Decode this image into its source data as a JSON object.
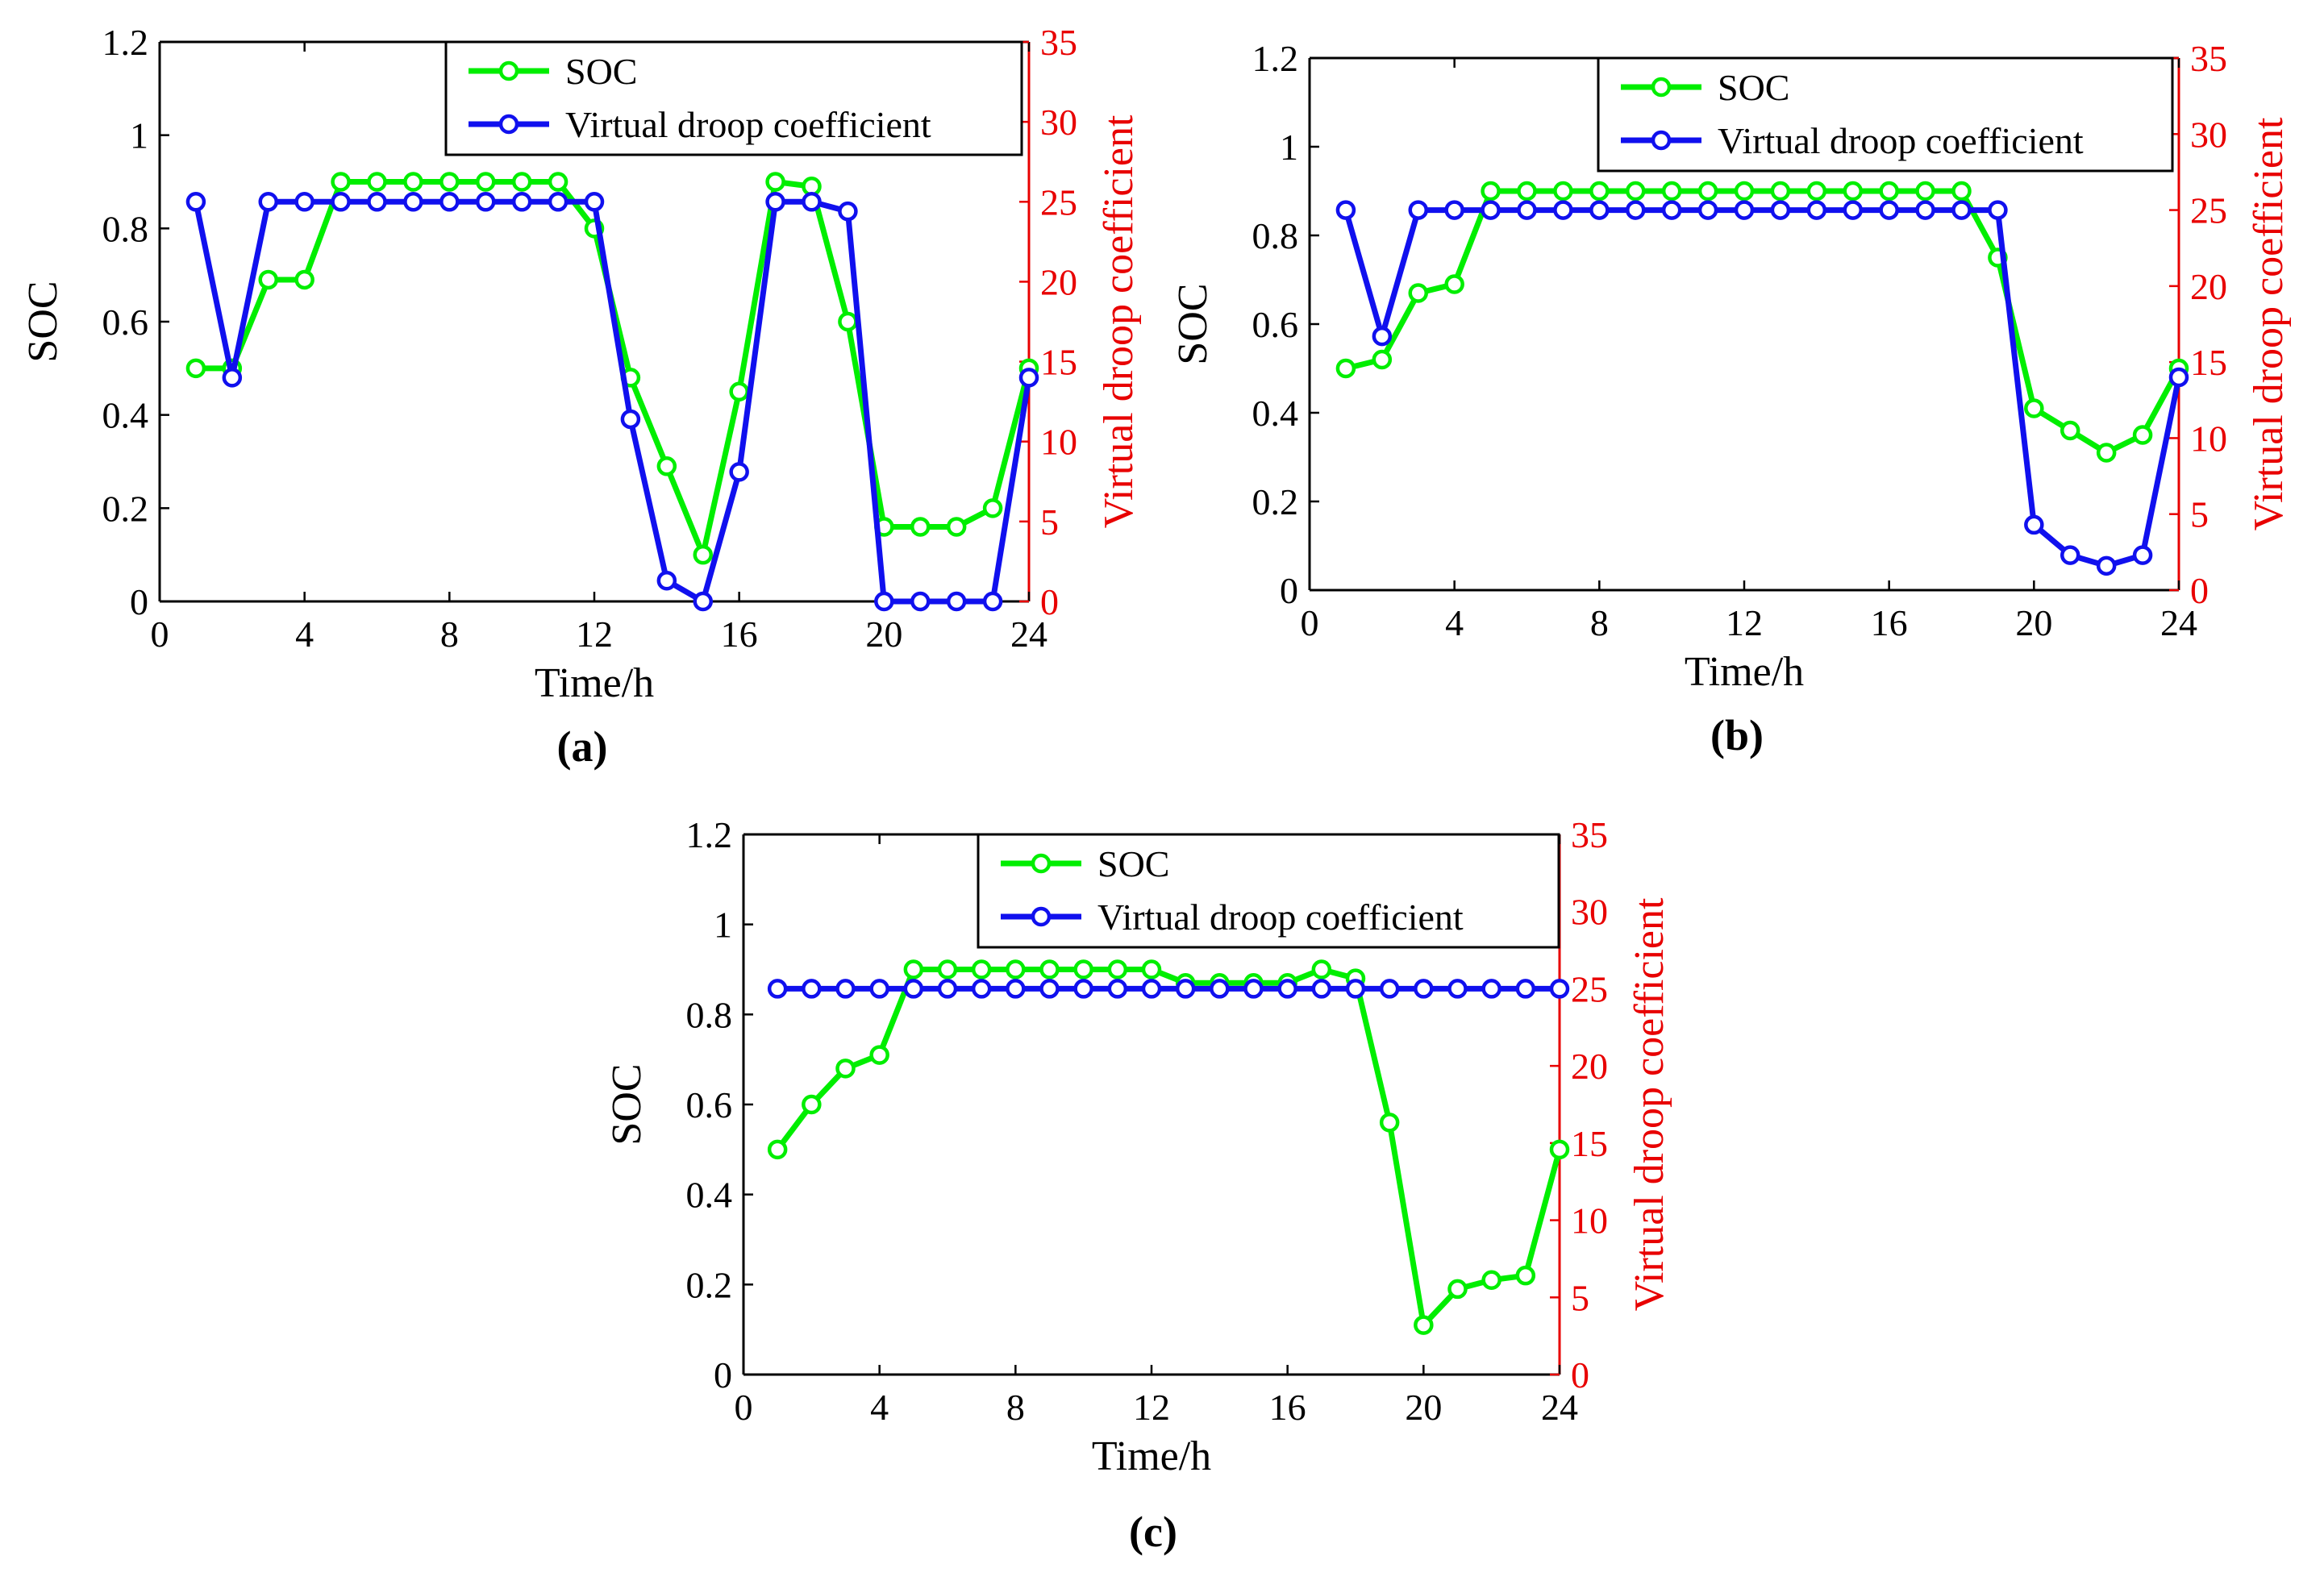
{
  "figure": {
    "description_free": true
  },
  "colors": {
    "soc": "#00ee00",
    "droop": "#1010ee",
    "right_axis": "#e80000",
    "axis": "#000000"
  },
  "chart_data": [
    {
      "type": "line",
      "panel_label": "(a)",
      "xlabel": "Time/h",
      "ylabel_left": "SOC",
      "ylabel_right": "Virtual droop coefficient",
      "xlim": [
        0,
        24
      ],
      "ylim_left": [
        0,
        1.2
      ],
      "ylim_right": [
        0,
        35
      ],
      "xticks": [
        "0",
        "4",
        "8",
        "12",
        "16",
        "20",
        "24"
      ],
      "yticks_left": [
        "0",
        "0.2",
        "0.4",
        "0.6",
        "0.8",
        "1",
        "1.2"
      ],
      "yticks_right": [
        "0",
        "5",
        "10",
        "15",
        "20",
        "25",
        "30",
        "35"
      ],
      "legend": [
        "SOC",
        "Virtual droop coefficient"
      ],
      "x": [
        1,
        2,
        3,
        4,
        5,
        6,
        7,
        8,
        9,
        10,
        11,
        12,
        13,
        14,
        15,
        16,
        17,
        18,
        19,
        20,
        21,
        22,
        23,
        24
      ],
      "series": [
        {
          "name": "SOC",
          "axis": "left",
          "values": [
            0.5,
            0.5,
            0.69,
            0.69,
            0.9,
            0.9,
            0.9,
            0.9,
            0.9,
            0.9,
            0.9,
            0.8,
            0.48,
            0.29,
            0.1,
            0.45,
            0.9,
            0.89,
            0.6,
            0.16,
            0.16,
            0.16,
            0.2,
            0.5
          ]
        },
        {
          "name": "Virtual droop coefficient",
          "axis": "right",
          "values": [
            25,
            14,
            25,
            25,
            25,
            25,
            25,
            25,
            25,
            25,
            25,
            25,
            11.4,
            1.3,
            0,
            8.1,
            25,
            25,
            24.4,
            0,
            0,
            0,
            0,
            14
          ]
        }
      ]
    },
    {
      "type": "line",
      "panel_label": "(b)",
      "xlabel": "Time/h",
      "ylabel_left": "SOC",
      "ylabel_right": "Virtual droop coefficient",
      "xlim": [
        0,
        24
      ],
      "ylim_left": [
        0,
        1.2
      ],
      "ylim_right": [
        0,
        35
      ],
      "xticks": [
        "0",
        "4",
        "8",
        "12",
        "16",
        "20",
        "24"
      ],
      "yticks_left": [
        "0",
        "0.2",
        "0.4",
        "0.6",
        "0.8",
        "1",
        "1.2"
      ],
      "yticks_right": [
        "0",
        "5",
        "10",
        "15",
        "20",
        "25",
        "30",
        "35"
      ],
      "legend": [
        "SOC",
        "Virtual droop coefficient"
      ],
      "x": [
        1,
        2,
        3,
        4,
        5,
        6,
        7,
        8,
        9,
        10,
        11,
        12,
        13,
        14,
        15,
        16,
        17,
        18,
        19,
        20,
        21,
        22,
        23,
        24
      ],
      "series": [
        {
          "name": "SOC",
          "axis": "left",
          "values": [
            0.5,
            0.52,
            0.67,
            0.69,
            0.9,
            0.9,
            0.9,
            0.9,
            0.9,
            0.9,
            0.9,
            0.9,
            0.9,
            0.9,
            0.9,
            0.9,
            0.9,
            0.9,
            0.75,
            0.41,
            0.36,
            0.31,
            0.35,
            0.5
          ]
        },
        {
          "name": "Virtual droop coefficient",
          "axis": "right",
          "values": [
            25,
            16.7,
            25,
            25,
            25,
            25,
            25,
            25,
            25,
            25,
            25,
            25,
            25,
            25,
            25,
            25,
            25,
            25,
            25,
            4.3,
            2.3,
            1.6,
            2.3,
            14
          ]
        }
      ]
    },
    {
      "type": "line",
      "panel_label": "(c)",
      "xlabel": "Time/h",
      "ylabel_left": "SOC",
      "ylabel_right": "Virtual droop coefficient",
      "xlim": [
        0,
        24
      ],
      "ylim_left": [
        0,
        1.2
      ],
      "ylim_right": [
        0,
        35
      ],
      "xticks": [
        "0",
        "4",
        "8",
        "12",
        "16",
        "20",
        "24"
      ],
      "yticks_left": [
        "0",
        "0.2",
        "0.4",
        "0.6",
        "0.8",
        "1",
        "1.2"
      ],
      "yticks_right": [
        "0",
        "5",
        "10",
        "15",
        "20",
        "25",
        "30",
        "35"
      ],
      "legend": [
        "SOC",
        "Virtual droop coefficient"
      ],
      "x": [
        1,
        2,
        3,
        4,
        5,
        6,
        7,
        8,
        9,
        10,
        11,
        12,
        13,
        14,
        15,
        16,
        17,
        18,
        19,
        20,
        21,
        22,
        23,
        24
      ],
      "series": [
        {
          "name": "SOC",
          "axis": "left",
          "values": [
            0.5,
            0.6,
            0.68,
            0.71,
            0.9,
            0.9,
            0.9,
            0.9,
            0.9,
            0.9,
            0.9,
            0.9,
            0.87,
            0.87,
            0.87,
            0.87,
            0.9,
            0.88,
            0.56,
            0.11,
            0.19,
            0.21,
            0.22,
            0.5
          ]
        },
        {
          "name": "Virtual droop coefficient",
          "axis": "right",
          "values": [
            25,
            25,
            25,
            25,
            25,
            25,
            25,
            25,
            25,
            25,
            25,
            25,
            25,
            25,
            25,
            25,
            25,
            25,
            25,
            25,
            25,
            25,
            25,
            25
          ]
        }
      ]
    }
  ]
}
